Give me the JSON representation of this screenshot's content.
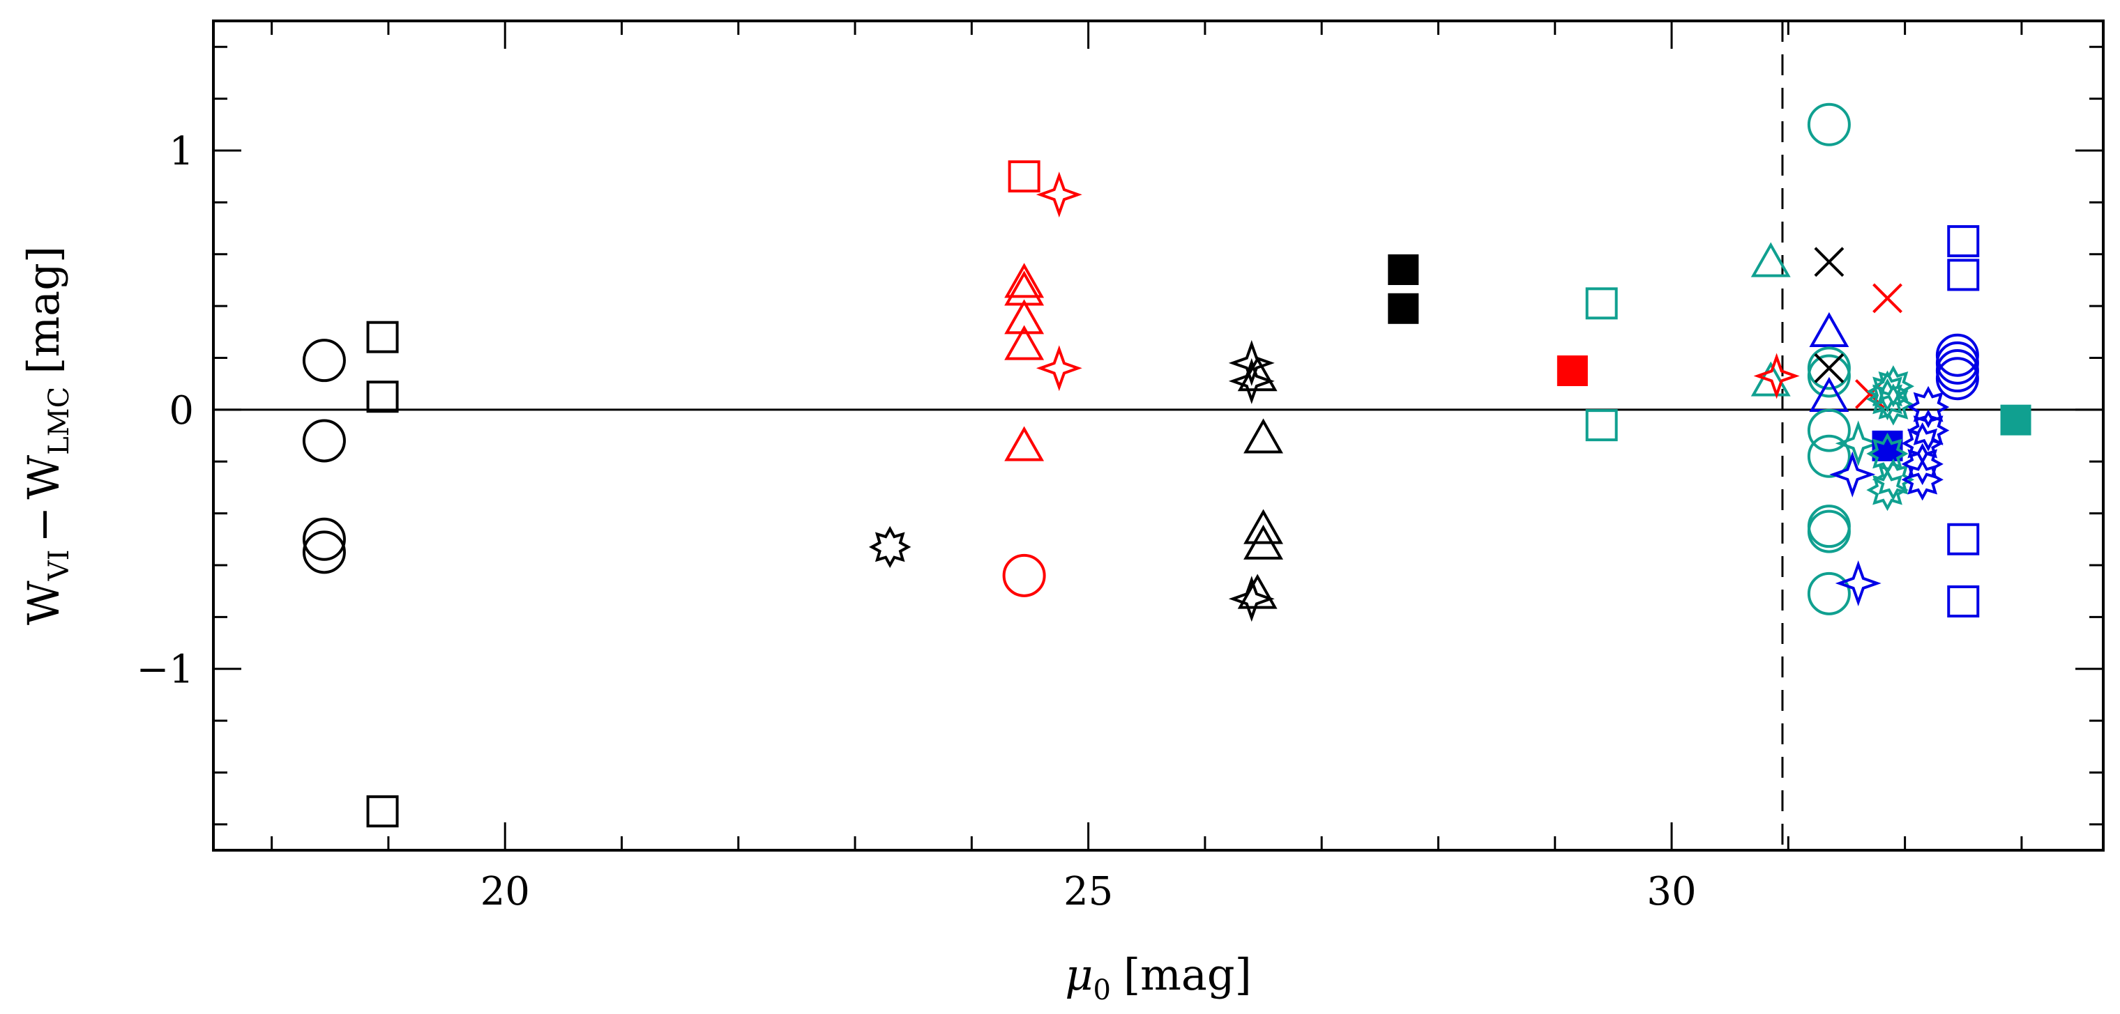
{
  "chart_data": {
    "type": "scatter",
    "xlabel": "μ0 [mag]",
    "ylabel": "WVI − WLMC [mag]",
    "xlabel_main": "μ",
    "xlabel_sub": "0",
    "xlabel_unit": "[mag]",
    "ylabel_w": "W",
    "ylabel_sub1": "VI",
    "ylabel_minus": "−",
    "ylabel_sub2": "LMC",
    "ylabel_unit": "[mag]",
    "xlim": [
      17.5,
      33.7
    ],
    "ylim": [
      -1.7,
      1.5
    ],
    "x_major_ticks": [
      20,
      25,
      30
    ],
    "x_tick_labels": [
      "20",
      "25",
      "30"
    ],
    "x_minor_step": 1,
    "y_major_ticks": [
      -1,
      0,
      1
    ],
    "y_tick_labels": [
      "−1",
      "0",
      "1"
    ],
    "y_minor_step": 0.2,
    "reference_line_y": 0,
    "vertical_dashed_line_x": 30.95,
    "grid": false,
    "colors": {
      "black": "#000000",
      "red": "#ff0000",
      "teal": "#10a090",
      "blue": "#0000e6"
    },
    "points": [
      {
        "x": 18.45,
        "y": 0.19,
        "marker": "circle",
        "color": "black"
      },
      {
        "x": 18.45,
        "y": -0.12,
        "marker": "circle",
        "color": "black"
      },
      {
        "x": 18.45,
        "y": -0.5,
        "marker": "circle",
        "color": "black"
      },
      {
        "x": 18.45,
        "y": -0.55,
        "marker": "circle",
        "color": "black"
      },
      {
        "x": 18.95,
        "y": 0.28,
        "marker": "square",
        "color": "black"
      },
      {
        "x": 18.95,
        "y": 0.05,
        "marker": "square",
        "color": "black"
      },
      {
        "x": 18.95,
        "y": -1.55,
        "marker": "square",
        "color": "black"
      },
      {
        "x": 23.3,
        "y": -0.53,
        "marker": "star8",
        "color": "black"
      },
      {
        "x": 24.45,
        "y": 0.9,
        "marker": "square",
        "color": "red"
      },
      {
        "x": 24.75,
        "y": 0.83,
        "marker": "star4",
        "color": "red"
      },
      {
        "x": 24.45,
        "y": 0.48,
        "marker": "triangle",
        "color": "red"
      },
      {
        "x": 24.45,
        "y": 0.45,
        "marker": "triangle",
        "color": "red"
      },
      {
        "x": 24.45,
        "y": 0.34,
        "marker": "triangle",
        "color": "red"
      },
      {
        "x": 24.45,
        "y": 0.24,
        "marker": "triangle",
        "color": "red"
      },
      {
        "x": 24.75,
        "y": 0.16,
        "marker": "star4",
        "color": "red"
      },
      {
        "x": 24.45,
        "y": -0.15,
        "marker": "triangle",
        "color": "red"
      },
      {
        "x": 24.45,
        "y": -0.64,
        "marker": "circle",
        "color": "red"
      },
      {
        "x": 26.4,
        "y": 0.18,
        "marker": "star4",
        "color": "black"
      },
      {
        "x": 26.45,
        "y": 0.12,
        "marker": "triangle",
        "color": "black"
      },
      {
        "x": 26.4,
        "y": 0.11,
        "marker": "star4",
        "color": "black"
      },
      {
        "x": 26.5,
        "y": -0.12,
        "marker": "triangle",
        "color": "black"
      },
      {
        "x": 26.5,
        "y": -0.47,
        "marker": "triangle",
        "color": "black"
      },
      {
        "x": 26.5,
        "y": -0.53,
        "marker": "triangle",
        "color": "black"
      },
      {
        "x": 26.45,
        "y": -0.72,
        "marker": "triangle",
        "color": "black"
      },
      {
        "x": 26.4,
        "y": -0.73,
        "marker": "star4",
        "color": "black"
      },
      {
        "x": 27.7,
        "y": 0.54,
        "marker": "filled-square",
        "color": "black"
      },
      {
        "x": 27.7,
        "y": 0.39,
        "marker": "filled-square",
        "color": "black"
      },
      {
        "x": 29.15,
        "y": 0.15,
        "marker": "filled-square",
        "color": "red"
      },
      {
        "x": 29.4,
        "y": 0.41,
        "marker": "square",
        "color": "teal"
      },
      {
        "x": 29.4,
        "y": -0.06,
        "marker": "square",
        "color": "teal"
      },
      {
        "x": 30.85,
        "y": 0.56,
        "marker": "triangle",
        "color": "teal"
      },
      {
        "x": 30.85,
        "y": 0.1,
        "marker": "triangle",
        "color": "teal"
      },
      {
        "x": 30.9,
        "y": 0.13,
        "marker": "star4",
        "color": "red"
      },
      {
        "x": 31.35,
        "y": 1.1,
        "marker": "circle",
        "color": "teal"
      },
      {
        "x": 31.35,
        "y": 0.57,
        "marker": "cross",
        "color": "black"
      },
      {
        "x": 31.85,
        "y": 0.43,
        "marker": "cross",
        "color": "red"
      },
      {
        "x": 31.35,
        "y": 0.29,
        "marker": "triangle",
        "color": "blue"
      },
      {
        "x": 31.35,
        "y": 0.16,
        "marker": "circle",
        "color": "teal"
      },
      {
        "x": 31.35,
        "y": 0.13,
        "marker": "circle",
        "color": "teal"
      },
      {
        "x": 31.35,
        "y": 0.16,
        "marker": "cross",
        "color": "black"
      },
      {
        "x": 31.35,
        "y": 0.04,
        "marker": "triangle",
        "color": "blue"
      },
      {
        "x": 31.35,
        "y": -0.08,
        "marker": "circle",
        "color": "teal"
      },
      {
        "x": 31.35,
        "y": -0.18,
        "marker": "circle",
        "color": "teal"
      },
      {
        "x": 31.35,
        "y": -0.45,
        "marker": "circle",
        "color": "teal"
      },
      {
        "x": 31.35,
        "y": -0.47,
        "marker": "circle",
        "color": "teal"
      },
      {
        "x": 31.35,
        "y": -0.71,
        "marker": "circle",
        "color": "teal"
      },
      {
        "x": 31.6,
        "y": -0.67,
        "marker": "star4",
        "color": "blue"
      },
      {
        "x": 31.55,
        "y": -0.25,
        "marker": "star4",
        "color": "blue"
      },
      {
        "x": 31.6,
        "y": -0.13,
        "marker": "star4",
        "color": "teal"
      },
      {
        "x": 31.7,
        "y": 0.06,
        "marker": "cross",
        "color": "red"
      },
      {
        "x": 31.85,
        "y": 0.07,
        "marker": "star8",
        "color": "teal"
      },
      {
        "x": 31.85,
        "y": 0.04,
        "marker": "star8",
        "color": "teal"
      },
      {
        "x": 31.9,
        "y": 0.09,
        "marker": "star8",
        "color": "teal"
      },
      {
        "x": 31.9,
        "y": 0.02,
        "marker": "star8",
        "color": "teal"
      },
      {
        "x": 31.85,
        "y": -0.14,
        "marker": "filled-square",
        "color": "blue"
      },
      {
        "x": 31.85,
        "y": -0.17,
        "marker": "star8",
        "color": "teal"
      },
      {
        "x": 31.9,
        "y": -0.27,
        "marker": "star8",
        "color": "teal"
      },
      {
        "x": 31.85,
        "y": -0.31,
        "marker": "star8",
        "color": "teal"
      },
      {
        "x": 32.2,
        "y": 0.01,
        "marker": "star8",
        "color": "blue"
      },
      {
        "x": 32.2,
        "y": -0.08,
        "marker": "star8",
        "color": "blue"
      },
      {
        "x": 32.15,
        "y": -0.13,
        "marker": "star8",
        "color": "blue"
      },
      {
        "x": 32.15,
        "y": -0.21,
        "marker": "star8",
        "color": "blue"
      },
      {
        "x": 32.15,
        "y": -0.27,
        "marker": "star8",
        "color": "blue"
      },
      {
        "x": 32.5,
        "y": 0.65,
        "marker": "square",
        "color": "blue"
      },
      {
        "x": 32.5,
        "y": 0.52,
        "marker": "square",
        "color": "blue"
      },
      {
        "x": 32.45,
        "y": 0.21,
        "marker": "circle",
        "color": "blue"
      },
      {
        "x": 32.45,
        "y": 0.18,
        "marker": "circle",
        "color": "blue"
      },
      {
        "x": 32.45,
        "y": 0.15,
        "marker": "circle",
        "color": "blue"
      },
      {
        "x": 32.45,
        "y": 0.12,
        "marker": "circle",
        "color": "blue"
      },
      {
        "x": 32.5,
        "y": -0.5,
        "marker": "square",
        "color": "blue"
      },
      {
        "x": 32.5,
        "y": -0.74,
        "marker": "square",
        "color": "blue"
      },
      {
        "x": 32.95,
        "y": -0.04,
        "marker": "filled-square",
        "color": "teal"
      }
    ]
  }
}
